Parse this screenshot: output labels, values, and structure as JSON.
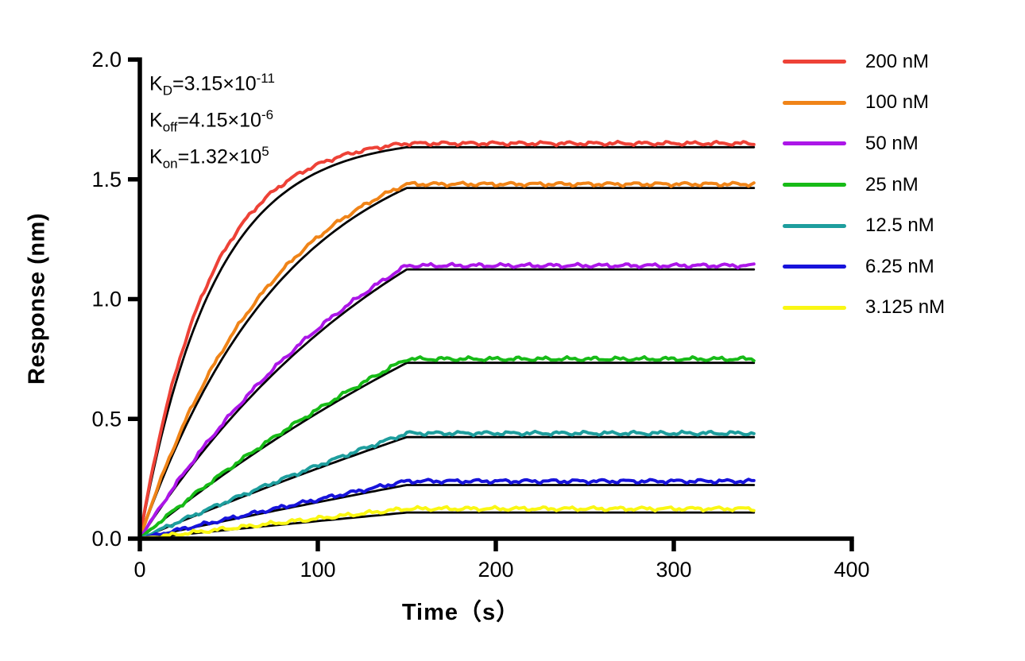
{
  "figure": {
    "background": "#ffffff"
  },
  "chart_data": {
    "type": "line",
    "title": "",
    "xlabel": "Time（s）",
    "ylabel": "Response (nm)",
    "xlim": [
      0,
      400
    ],
    "ylim": [
      0,
      2
    ],
    "x_tick_labels": [
      "0",
      "100",
      "200",
      "300",
      "400"
    ],
    "x_tick_values": [
      0,
      100,
      200,
      300,
      400
    ],
    "y_tick_labels": [
      "0.0",
      "0.5",
      "1.0",
      "1.5",
      "2.0"
    ],
    "y_tick_values": [
      0,
      0.5,
      1,
      1.5,
      2
    ],
    "grid": false,
    "legend_position": "right",
    "axis_color": "#000000",
    "fit_color": "#000000",
    "association_end_s": 150,
    "trace_end_s": 345,
    "fit_offset": 0.016,
    "kinetics_lines": [
      {
        "base": "K",
        "sub": "D",
        "mid": "=3.15×10",
        "sup": "-11"
      },
      {
        "base": "K",
        "sub": "off",
        "mid": "=4.15×10",
        "sup": "-6"
      },
      {
        "base": "K",
        "sub": "on",
        "mid": "=1.32×10",
        "sup": "5"
      }
    ],
    "series": [
      {
        "name": "200 nM",
        "color": "#EE4237",
        "plateau": 1.65,
        "k_obs": 0.0264
      },
      {
        "name": "100 nM",
        "color": "#F08418",
        "plateau": 1.48,
        "k_obs": 0.0132
      },
      {
        "name": "50 nM",
        "color": "#AC16E8",
        "plateau": 1.14,
        "k_obs": 0.0066
      },
      {
        "name": "25 nM",
        "color": "#17BB17",
        "plateau": 0.75,
        "k_obs": 0.0033
      },
      {
        "name": "12.5 nM",
        "color": "#1E9E9E",
        "plateau": 0.44,
        "k_obs": 0.00165
      },
      {
        "name": "6.25 nM",
        "color": "#1713DB",
        "plateau": 0.24,
        "k_obs": 0.000825
      },
      {
        "name": "3.125 nM",
        "color": "#FAF714",
        "plateau": 0.125,
        "k_obs": 0.0004125
      }
    ]
  }
}
